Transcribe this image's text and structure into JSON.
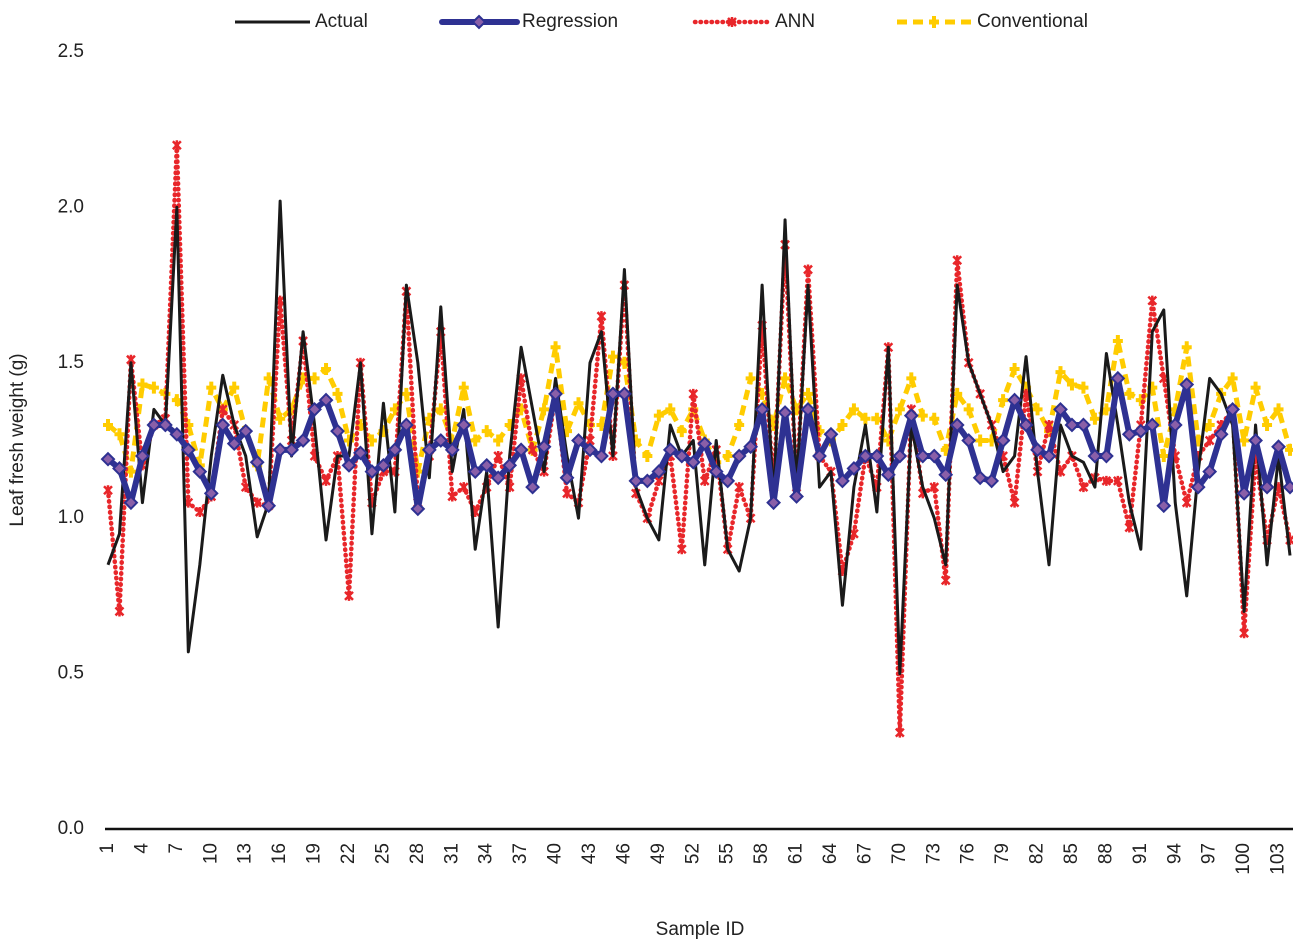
{
  "chart_data": {
    "type": "line",
    "x_label": "Sample ID",
    "y_label": "Leaf fresh weight (g)",
    "legend": "top",
    "categories": [
      1,
      null,
      null,
      4,
      null,
      null,
      7,
      null,
      null,
      10,
      null,
      null,
      13,
      null,
      null,
      16,
      null,
      null,
      19,
      null,
      null,
      22,
      null,
      null,
      25,
      null,
      null,
      28,
      null,
      null,
      31,
      null,
      null,
      34,
      null,
      null,
      37,
      null,
      null,
      40,
      null,
      null,
      43,
      null,
      null,
      46,
      null,
      null,
      49,
      null,
      null,
      52,
      null,
      null,
      55,
      null,
      null,
      58,
      null,
      null,
      61,
      null,
      null,
      64,
      null,
      null,
      67,
      null,
      null,
      70,
      null,
      null,
      73,
      null,
      null,
      76,
      null,
      null,
      79,
      null,
      null,
      82,
      null,
      null,
      85,
      null,
      null,
      88,
      null,
      null,
      91,
      null,
      null,
      94,
      null,
      null,
      97,
      null,
      null,
      100,
      null,
      null,
      103,
      null
    ],
    "ylim": [
      0,
      2.5
    ],
    "yticks": [
      {
        "value": 0,
        "label": "0.0"
      },
      {
        "value": 0.5,
        "label": "0.5"
      },
      {
        "value": 1,
        "label": "1.0"
      },
      {
        "value": 1.5,
        "label": "1.5"
      },
      {
        "value": 2,
        "label": "2.0"
      },
      {
        "value": 2.5,
        "label": "2.5"
      }
    ],
    "series": [
      {
        "name": "Actual",
        "color": "#1a1a1a",
        "marker": "none",
        "values": [
          0.85,
          0.95,
          1.5,
          1.05,
          1.35,
          1.3,
          2.0,
          0.57,
          0.85,
          1.2,
          1.46,
          1.3,
          1.2,
          0.94,
          1.05,
          2.02,
          1.2,
          1.6,
          1.3,
          0.93,
          1.2,
          1.2,
          1.5,
          0.95,
          1.37,
          1.02,
          1.75,
          1.5,
          1.13,
          1.68,
          1.15,
          1.35,
          0.9,
          1.15,
          0.65,
          1.2,
          1.55,
          1.35,
          1.15,
          1.45,
          1.2,
          1.0,
          1.5,
          1.6,
          1.2,
          1.8,
          1.1,
          1.0,
          0.93,
          1.3,
          1.2,
          1.25,
          0.85,
          1.25,
          0.9,
          0.83,
          1.0,
          1.75,
          1.05,
          1.96,
          1.1,
          1.75,
          1.1,
          1.15,
          0.72,
          1.1,
          1.3,
          1.02,
          1.55,
          0.5,
          1.3,
          1.1,
          1.0,
          0.85,
          1.75,
          1.5,
          1.4,
          1.3,
          1.15,
          1.2,
          1.52,
          1.15,
          0.85,
          1.3,
          1.2,
          1.18,
          1.1,
          1.53,
          1.3,
          1.05,
          0.9,
          1.6,
          1.67,
          1.05,
          0.75,
          1.15,
          1.45,
          1.4,
          1.3,
          0.7,
          1.3,
          0.85,
          1.2,
          0.88
        ]
      },
      {
        "name": "Regression",
        "color": "#2e3192",
        "marker": "diamond",
        "values": [
          1.19,
          1.16,
          1.05,
          1.2,
          1.3,
          1.3,
          1.27,
          1.22,
          1.15,
          1.08,
          1.3,
          1.24,
          1.28,
          1.18,
          1.04,
          1.22,
          1.22,
          1.25,
          1.35,
          1.38,
          1.28,
          1.17,
          1.21,
          1.15,
          1.17,
          1.22,
          1.3,
          1.03,
          1.22,
          1.25,
          1.22,
          1.3,
          1.15,
          1.17,
          1.13,
          1.17,
          1.22,
          1.1,
          1.23,
          1.4,
          1.13,
          1.25,
          1.22,
          1.2,
          1.4,
          1.4,
          1.12,
          1.12,
          1.15,
          1.22,
          1.2,
          1.18,
          1.24,
          1.15,
          1.12,
          1.2,
          1.23,
          1.35,
          1.05,
          1.34,
          1.07,
          1.35,
          1.2,
          1.27,
          1.12,
          1.16,
          1.2,
          1.2,
          1.14,
          1.2,
          1.33,
          1.2,
          1.2,
          1.14,
          1.3,
          1.25,
          1.13,
          1.12,
          1.25,
          1.38,
          1.3,
          1.22,
          1.2,
          1.35,
          1.3,
          1.3,
          1.2,
          1.2,
          1.45,
          1.27,
          1.28,
          1.3,
          1.04,
          1.3,
          1.43,
          1.1,
          1.15,
          1.27,
          1.35,
          1.08,
          1.25,
          1.1,
          1.23,
          1.1
        ]
      },
      {
        "name": "ANN",
        "color": "#e8262a",
        "marker": "x",
        "values": [
          1.09,
          0.7,
          1.51,
          1.17,
          1.3,
          1.32,
          2.2,
          1.05,
          1.02,
          1.07,
          1.35,
          1.3,
          1.1,
          1.05,
          1.04,
          1.7,
          1.25,
          1.57,
          1.2,
          1.12,
          1.2,
          0.75,
          1.5,
          1.05,
          1.15,
          1.15,
          1.73,
          1.05,
          1.2,
          1.6,
          1.07,
          1.1,
          1.02,
          1.1,
          1.2,
          1.1,
          1.45,
          1.22,
          1.15,
          1.4,
          1.08,
          1.05,
          1.25,
          1.65,
          1.2,
          1.75,
          1.08,
          1.0,
          1.12,
          1.2,
          0.9,
          1.4,
          1.12,
          1.22,
          0.9,
          1.1,
          1.0,
          1.62,
          1.1,
          1.88,
          1.1,
          1.8,
          1.2,
          1.15,
          0.83,
          0.95,
          1.2,
          1.1,
          1.55,
          0.31,
          1.35,
          1.08,
          1.1,
          0.8,
          1.83,
          1.5,
          1.4,
          1.3,
          1.2,
          1.05,
          1.4,
          1.15,
          1.3,
          1.15,
          1.2,
          1.1,
          1.13,
          1.12,
          1.12,
          0.97,
          1.3,
          1.7,
          1.45,
          1.2,
          1.05,
          1.2,
          1.25,
          1.3,
          1.35,
          0.63,
          1.2,
          0.93,
          1.1,
          0.93
        ]
      },
      {
        "name": "Conventional",
        "color": "#ffcc00",
        "marker": "plus",
        "values": [
          1.3,
          1.27,
          1.15,
          1.43,
          1.42,
          1.4,
          1.38,
          1.3,
          1.17,
          1.42,
          1.35,
          1.42,
          1.28,
          1.17,
          1.45,
          1.32,
          1.35,
          1.45,
          1.45,
          1.48,
          1.4,
          1.25,
          1.3,
          1.25,
          1.28,
          1.35,
          1.4,
          1.15,
          1.32,
          1.35,
          1.25,
          1.42,
          1.25,
          1.28,
          1.25,
          1.3,
          1.35,
          1.22,
          1.35,
          1.55,
          1.28,
          1.37,
          1.3,
          1.3,
          1.52,
          1.5,
          1.25,
          1.2,
          1.33,
          1.35,
          1.28,
          1.35,
          1.25,
          1.18,
          1.2,
          1.3,
          1.45,
          1.4,
          1.3,
          1.45,
          1.35,
          1.4,
          1.28,
          1.25,
          1.3,
          1.35,
          1.32,
          1.32,
          1.25,
          1.35,
          1.45,
          1.33,
          1.32,
          1.22,
          1.4,
          1.35,
          1.25,
          1.25,
          1.38,
          1.48,
          1.42,
          1.35,
          1.28,
          1.47,
          1.43,
          1.42,
          1.32,
          1.35,
          1.57,
          1.4,
          1.38,
          1.42,
          1.2,
          1.35,
          1.55,
          1.25,
          1.3,
          1.4,
          1.45,
          1.25,
          1.42,
          1.3,
          1.35,
          1.22
        ]
      }
    ]
  }
}
